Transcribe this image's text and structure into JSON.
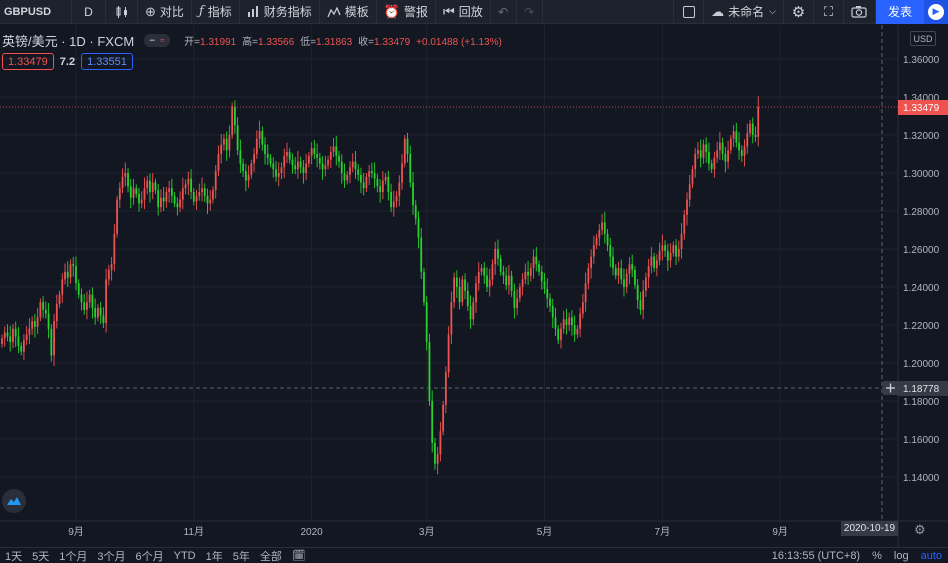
{
  "toolbar": {
    "symbol": "GBPUSD",
    "interval": "D",
    "compare_label": "对比",
    "indicators_label": "指标",
    "financials_label": "财务指标",
    "templates_label": "模板",
    "alert_label": "警报",
    "replay_label": "回放",
    "layout_name": "未命名",
    "publish_label": "发表"
  },
  "legend": {
    "title": "英镑/美元 · 1D · FXCM",
    "open_label": "开=",
    "open": "1.31991",
    "high_label": "高=",
    "high": "1.33566",
    "low_label": "低=",
    "low": "1.31863",
    "close_label": "收=",
    "close": "1.33479",
    "change": "+0.01488 (+1.13%)"
  },
  "badges": {
    "bid": "1.33479",
    "spread": "7.2",
    "ask": "1.33551"
  },
  "price_axis": {
    "currency": "USD",
    "last_price": "1.33479",
    "crosshair_price": "1.18778"
  },
  "time_axis": {
    "crosshair_date": "2020-10-19"
  },
  "bottom_bar": {
    "ranges": [
      "1天",
      "5天",
      "1个月",
      "3个月",
      "6个月",
      "YTD",
      "1年",
      "5年",
      "全部"
    ],
    "time": "16:13:55 (UTC+8)",
    "percent": "%",
    "log": "log",
    "auto": "auto"
  },
  "colors": {
    "up": "#ef5350",
    "down": "#26d42b",
    "background": "#131722",
    "accent": "#2962ff"
  },
  "chart_data": {
    "type": "candlestick",
    "symbol": "英镑/美元",
    "ylim": [
      1.13,
      1.37
    ],
    "y_ticks": [
      1.14,
      1.16,
      1.18,
      1.2,
      1.22,
      1.24,
      1.26,
      1.28,
      1.3,
      1.32,
      1.34,
      1.36
    ],
    "x_ticks": [
      {
        "label": "9月",
        "index": 27
      },
      {
        "label": "11月",
        "index": 70
      },
      {
        "label": "2020",
        "index": 113
      },
      {
        "label": "3月",
        "index": 155
      },
      {
        "label": "5月",
        "index": 198
      },
      {
        "label": "7月",
        "index": 241
      },
      {
        "label": "9月",
        "index": 284
      }
    ],
    "closes": [
      1.213,
      1.216,
      1.214,
      1.211,
      1.218,
      1.214,
      1.209,
      1.206,
      1.212,
      1.215,
      1.218,
      1.222,
      1.219,
      1.224,
      1.232,
      1.228,
      1.226,
      1.218,
      1.204,
      1.222,
      1.231,
      1.236,
      1.244,
      1.248,
      1.245,
      1.252,
      1.251,
      1.242,
      1.236,
      1.232,
      1.228,
      1.232,
      1.236,
      1.229,
      1.224,
      1.229,
      1.225,
      1.221,
      1.244,
      1.249,
      1.252,
      1.268,
      1.286,
      1.292,
      1.298,
      1.3,
      1.293,
      1.287,
      1.292,
      1.289,
      1.284,
      1.286,
      1.292,
      1.296,
      1.29,
      1.295,
      1.291,
      1.282,
      1.287,
      1.285,
      1.29,
      1.292,
      1.288,
      1.284,
      1.282,
      1.286,
      1.292,
      1.294,
      1.297,
      1.29,
      1.285,
      1.288,
      1.29,
      1.292,
      1.288,
      1.284,
      1.286,
      1.291,
      1.301,
      1.31,
      1.315,
      1.318,
      1.312,
      1.32,
      1.335,
      1.325,
      1.312,
      1.305,
      1.301,
      1.296,
      1.299,
      1.305,
      1.31,
      1.318,
      1.322,
      1.315,
      1.31,
      1.308,
      1.305,
      1.302,
      1.298,
      1.3,
      1.303,
      1.309,
      1.311,
      1.307,
      1.304,
      1.302,
      1.306,
      1.303,
      1.3,
      1.305,
      1.309,
      1.313,
      1.31,
      1.308,
      1.305,
      1.302,
      1.304,
      1.307,
      1.311,
      1.314,
      1.309,
      1.306,
      1.3,
      1.296,
      1.299,
      1.303,
      1.306,
      1.302,
      1.299,
      1.295,
      1.292,
      1.298,
      1.301,
      1.3,
      1.297,
      1.293,
      1.29,
      1.296,
      1.298,
      1.29,
      1.282,
      1.285,
      1.288,
      1.295,
      1.305,
      1.318,
      1.31,
      1.295,
      1.283,
      1.276,
      1.266,
      1.248,
      1.232,
      1.211,
      1.18,
      1.158,
      1.147,
      1.152,
      1.164,
      1.178,
      1.195,
      1.215,
      1.232,
      1.245,
      1.24,
      1.232,
      1.244,
      1.238,
      1.23,
      1.223,
      1.232,
      1.242,
      1.248,
      1.25,
      1.246,
      1.24,
      1.244,
      1.252,
      1.26,
      1.255,
      1.248,
      1.246,
      1.241,
      1.246,
      1.238,
      1.229,
      1.234,
      1.24,
      1.244,
      1.248,
      1.246,
      1.25,
      1.256,
      1.252,
      1.248,
      1.243,
      1.239,
      1.234,
      1.23,
      1.224,
      1.218,
      1.212,
      1.218,
      1.223,
      1.22,
      1.224,
      1.22,
      1.215,
      1.218,
      1.226,
      1.232,
      1.242,
      1.25,
      1.256,
      1.262,
      1.266,
      1.27,
      1.274,
      1.268,
      1.262,
      1.256,
      1.25,
      1.246,
      1.25,
      1.244,
      1.24,
      1.247,
      1.252,
      1.249,
      1.241,
      1.233,
      1.228,
      1.238,
      1.245,
      1.251,
      1.256,
      1.25,
      1.254,
      1.259,
      1.262,
      1.259,
      1.254,
      1.258,
      1.262,
      1.256,
      1.26,
      1.268,
      1.278,
      1.286,
      1.294,
      1.302,
      1.31,
      1.312,
      1.308,
      1.315,
      1.311,
      1.305,
      1.302,
      1.308,
      1.312,
      1.316,
      1.31,
      1.306,
      1.312,
      1.318,
      1.322,
      1.316,
      1.312,
      1.309,
      1.314,
      1.321,
      1.326,
      1.32,
      1.319,
      1.3348
    ]
  }
}
